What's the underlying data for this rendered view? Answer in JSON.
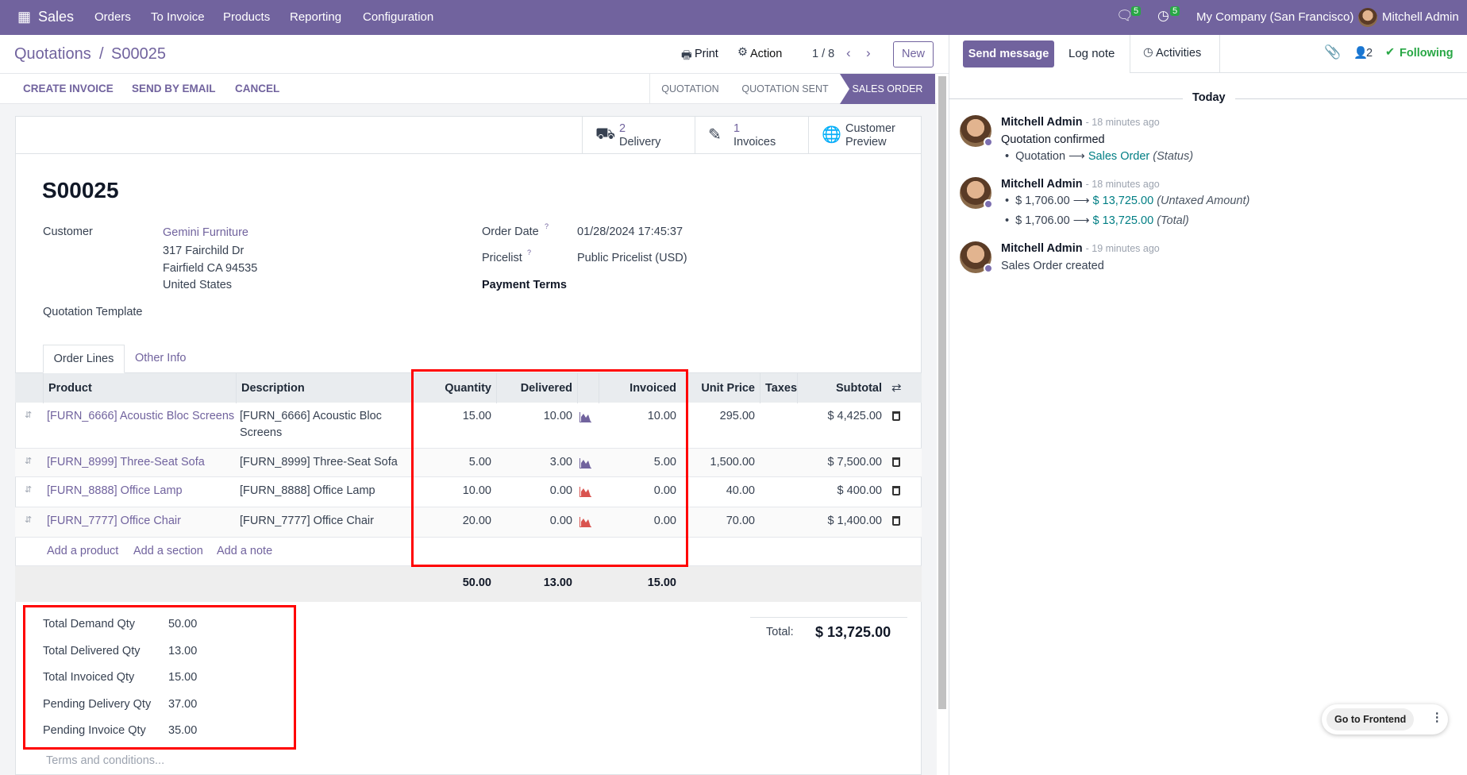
{
  "navbar": {
    "app": "Sales",
    "menu": [
      "Orders",
      "To Invoice",
      "Products",
      "Reporting",
      "Configuration"
    ],
    "messages_count": "5",
    "activities_count": "5",
    "company": "My Company (San Francisco)",
    "user": "Mitchell Admin"
  },
  "control": {
    "breadcrumb_parent": "Quotations",
    "breadcrumb_sep": "/",
    "breadcrumb_current": "S00025",
    "print": "Print",
    "action": "Action",
    "pager": "1 / 8",
    "new": "New"
  },
  "actions": [
    "CREATE INVOICE",
    "SEND BY EMAIL",
    "CANCEL"
  ],
  "status": {
    "steps": [
      "QUOTATION",
      "QUOTATION SENT",
      "SALES ORDER"
    ],
    "active": "SALES ORDER"
  },
  "smart_buttons": [
    {
      "count": "2",
      "label": "Delivery",
      "icon": "truck-icon"
    },
    {
      "count": "1",
      "label": "Invoices",
      "icon": "edit-icon"
    },
    {
      "count": "Customer",
      "label": "Preview",
      "icon": "globe-icon"
    }
  ],
  "form": {
    "name": "S00025",
    "customer_label": "Customer",
    "customer": "Gemini Furniture",
    "address": [
      "317 Fairchild Dr",
      "Fairfield CA 94535",
      "United States"
    ],
    "template_label": "Quotation Template",
    "order_date_label": "Order Date",
    "order_date": "01/28/2024 17:45:37",
    "pricelist_label": "Pricelist",
    "pricelist": "Public Pricelist (USD)",
    "payment_terms_label": "Payment Terms",
    "help_mark": "?"
  },
  "tabs": [
    "Order Lines",
    "Other Info"
  ],
  "table": {
    "headers": [
      "Product",
      "Description",
      "Quantity",
      "Delivered",
      "Invoiced",
      "Unit Price",
      "Taxes",
      "Subtotal"
    ],
    "rows": [
      {
        "product": "[FURN_6666] Acoustic Bloc Screens",
        "description": "[FURN_6666] Acoustic Bloc",
        "description2": "Screens",
        "qty": "15.00",
        "delivered": "10.00",
        "invoiced": "10.00",
        "price": "295.00",
        "subtotal": "$ 4,425.00",
        "forecast_color": "#71639e"
      },
      {
        "product": "[FURN_8999] Three-Seat Sofa",
        "description": "[FURN_8999] Three-Seat Sofa",
        "qty": "5.00",
        "delivered": "3.00",
        "invoiced": "5.00",
        "price": "1,500.00",
        "subtotal": "$ 7,500.00",
        "forecast_color": "#71639e"
      },
      {
        "product": "[FURN_8888] Office Lamp",
        "description": "[FURN_8888] Office Lamp",
        "qty": "10.00",
        "delivered": "0.00",
        "invoiced": "0.00",
        "price": "40.00",
        "subtotal": "$ 400.00",
        "forecast_color": "#d9534f"
      },
      {
        "product": "[FURN_7777] Office Chair",
        "description": "[FURN_7777] Office Chair",
        "qty": "20.00",
        "delivered": "0.00",
        "invoiced": "0.00",
        "price": "70.00",
        "subtotal": "$ 1,400.00",
        "forecast_color": "#d9534f"
      }
    ],
    "add_links": [
      "Add a product",
      "Add a section",
      "Add a note"
    ],
    "totals": {
      "qty": "50.00",
      "delivered": "13.00",
      "invoiced": "15.00"
    }
  },
  "summary": [
    {
      "label": "Total Demand Qty",
      "value": "50.00"
    },
    {
      "label": "Total Delivered Qty",
      "value": "13.00"
    },
    {
      "label": "Total Invoiced Qty",
      "value": "15.00"
    },
    {
      "label": "Pending Delivery Qty",
      "value": "37.00"
    },
    {
      "label": "Pending Invoice Qty",
      "value": "35.00"
    }
  ],
  "total": {
    "label": "Total:",
    "value": "$ 13,725.00"
  },
  "terms_placeholder": "Terms and conditions...",
  "chatter": {
    "send_message": "Send message",
    "log_note": "Log note",
    "activities": "Activities",
    "followers": "2",
    "following": "Following",
    "date_sep": "Today",
    "messages": [
      {
        "author": "Mitchell Admin",
        "time": "- 18 minutes ago",
        "body": "Quotation confirmed",
        "changes": [
          {
            "from": "Quotation",
            "to": "Sales Order",
            "field": "(Status)"
          }
        ]
      },
      {
        "author": "Mitchell Admin",
        "time": "- 18 minutes ago",
        "changes": [
          {
            "from": "$ 1,706.00",
            "to": "$ 13,725.00",
            "field": "(Untaxed Amount)"
          },
          {
            "from": "$ 1,706.00",
            "to": "$ 13,725.00",
            "field": "(Total)"
          }
        ]
      },
      {
        "author": "Mitchell Admin",
        "time": "- 19 minutes ago",
        "body": "Sales Order created"
      }
    ]
  },
  "frontend_button": "Go to Frontend",
  "colors": {
    "brand": "#71639e",
    "highlight": "#ff0000",
    "following": "#28a745",
    "change": "#017e84"
  }
}
